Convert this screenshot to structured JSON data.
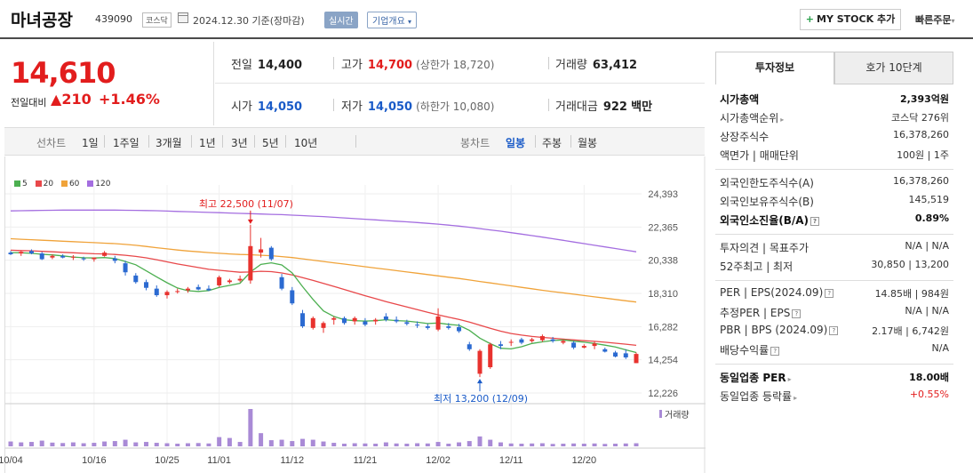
{
  "header": {
    "title": "마녀공장",
    "code": "439090",
    "market": "코스닥",
    "date": "2024.12.30",
    "date_note": "기준(장마감)",
    "realtime_label": "실시간",
    "company_label": "기업개요",
    "mystock_label": "MY STOCK 추가",
    "quick_label": "빠른주문"
  },
  "price": {
    "current": "14,610",
    "change_label": "전일대비",
    "change_value": "210",
    "change_pct": "+1.46%"
  },
  "stats": {
    "prev_close_label": "전일",
    "prev_close": "14,400",
    "high_label": "고가",
    "high": "14,700",
    "upper_limit_label": "(상한가",
    "upper_limit": "18,720)",
    "volume_label": "거래량",
    "volume": "63,412",
    "open_label": "시가",
    "open": "14,050",
    "low_label": "저가",
    "low": "14,050",
    "lower_limit_label": "(하한가",
    "lower_limit": "10,080)",
    "amount_label": "거래대금",
    "amount": "922",
    "amount_unit": "백만"
  },
  "period_bar": {
    "line_label": "선차트",
    "line_periods": [
      "1일",
      "1주일",
      "3개월",
      "1년",
      "3년",
      "5년",
      "10년"
    ],
    "candle_label": "봉차트",
    "candle_periods": [
      "일봉",
      "주봉",
      "월봉"
    ],
    "active_candle": "일봉"
  },
  "chart_data": {
    "type": "candlestick",
    "legend": [
      {
        "name": "5",
        "color": "#4caf50"
      },
      {
        "name": "20",
        "color": "#e8484a"
      },
      {
        "name": "60",
        "color": "#f0a33a"
      },
      {
        "name": "120",
        "color": "#a46ee0"
      }
    ],
    "y_ticks": [
      "24,393",
      "22,365",
      "20,338",
      "18,310",
      "16,282",
      "14,254",
      "12,226"
    ],
    "y_range": [
      12226,
      24393
    ],
    "x_ticks": [
      {
        "label": "10/04",
        "index": 0
      },
      {
        "label": "10/16",
        "index": 8
      },
      {
        "label": "10/25",
        "index": 15
      },
      {
        "label": "11/01",
        "index": 20
      },
      {
        "label": "11/12",
        "index": 27
      },
      {
        "label": "11/21",
        "index": 34
      },
      {
        "label": "12/02",
        "index": 41
      },
      {
        "label": "12/11",
        "index": 48
      },
      {
        "label": "12/20",
        "index": 55
      }
    ],
    "max_annotation": {
      "label": "최고 22,500 (11/07)",
      "index": 23,
      "value": 22500
    },
    "min_annotation": {
      "label": "최저 13,200 (12/09)",
      "index": 45,
      "value": 13200
    },
    "volume_label": "거래량",
    "candles": [
      [
        20800,
        20900,
        20650,
        20700
      ],
      [
        20750,
        20900,
        20600,
        20850
      ],
      [
        20900,
        21000,
        20700,
        20750
      ],
      [
        20750,
        20850,
        20350,
        20400
      ],
      [
        20500,
        20700,
        20400,
        20600
      ],
      [
        20600,
        20700,
        20450,
        20500
      ],
      [
        20500,
        20650,
        20350,
        20550
      ],
      [
        20450,
        20550,
        20300,
        20400
      ],
      [
        20400,
        20500,
        20250,
        20500
      ],
      [
        20600,
        20900,
        20550,
        20800
      ],
      [
        20450,
        20600,
        20150,
        20300
      ],
      [
        20150,
        20300,
        19400,
        19600
      ],
      [
        19400,
        19550,
        18900,
        19000
      ],
      [
        19000,
        19150,
        18500,
        18650
      ],
      [
        18600,
        18800,
        18100,
        18200
      ],
      [
        18200,
        18500,
        18000,
        18400
      ],
      [
        18400,
        18600,
        18300,
        18450
      ],
      [
        18500,
        18700,
        18350,
        18600
      ],
      [
        18700,
        18850,
        18500,
        18550
      ],
      [
        18600,
        18800,
        18450,
        18500
      ],
      [
        18800,
        19400,
        18700,
        19300
      ],
      [
        19000,
        19200,
        18900,
        19100
      ],
      [
        19100,
        19400,
        19000,
        19200
      ],
      [
        19100,
        22500,
        18900,
        21200
      ],
      [
        20800,
        21700,
        20500,
        21000
      ],
      [
        21100,
        21200,
        20300,
        20400
      ],
      [
        19300,
        19500,
        18500,
        18600
      ],
      [
        18500,
        18700,
        17600,
        17700
      ],
      [
        17100,
        17300,
        16200,
        16300
      ],
      [
        16200,
        16900,
        16100,
        16800
      ],
      [
        16200,
        16600,
        15900,
        16500
      ],
      [
        16700,
        16900,
        16400,
        16800
      ],
      [
        16800,
        16900,
        16400,
        16500
      ],
      [
        16600,
        16900,
        16400,
        16800
      ],
      [
        16600,
        16800,
        16300,
        16400
      ],
      [
        16600,
        16800,
        16400,
        16700
      ],
      [
        16900,
        17100,
        16600,
        16700
      ],
      [
        16700,
        16900,
        16500,
        16600
      ],
      [
        16550,
        16700,
        16350,
        16450
      ],
      [
        16400,
        16600,
        16200,
        16350
      ],
      [
        16300,
        16450,
        16100,
        16200
      ],
      [
        16100,
        17400,
        16000,
        16900
      ],
      [
        16300,
        16500,
        16100,
        16200
      ],
      [
        16250,
        16450,
        15900,
        16000
      ],
      [
        15200,
        15350,
        14800,
        14900
      ],
      [
        13400,
        14900,
        13200,
        14800
      ],
      [
        13800,
        15300,
        13700,
        15200
      ],
      [
        15200,
        15400,
        14900,
        15100
      ],
      [
        15300,
        15500,
        15100,
        15350
      ],
      [
        15500,
        15600,
        15200,
        15300
      ],
      [
        15400,
        15600,
        15300,
        15500
      ],
      [
        15450,
        15800,
        15350,
        15700
      ],
      [
        15500,
        15650,
        15300,
        15400
      ],
      [
        15300,
        15500,
        15200,
        15400
      ],
      [
        15300,
        15400,
        14900,
        15000
      ],
      [
        15000,
        15200,
        14950,
        15100
      ],
      [
        15100,
        15350,
        14900,
        15250
      ],
      [
        14900,
        15000,
        14700,
        14750
      ],
      [
        14700,
        14800,
        14400,
        14450
      ],
      [
        14650,
        14900,
        14300,
        14400
      ],
      [
        14050,
        14700,
        14050,
        14610
      ]
    ],
    "ma5": [
      20800,
      20790,
      20760,
      20700,
      20660,
      20600,
      20530,
      20490,
      20470,
      20500,
      20440,
      20260,
      20060,
      19690,
      19320,
      18960,
      18640,
      18470,
      18430,
      18480,
      18680,
      18800,
      18930,
      19620,
      20080,
      20180,
      20050,
      19560,
      18720,
      17940,
      17240,
      16900,
      16700,
      16640,
      16620,
      16640,
      16700,
      16650,
      16620,
      16550,
      16470,
      16500,
      16420,
      16360,
      16050,
      15580,
      15240,
      14960,
      14920,
      15050,
      15250,
      15350,
      15430,
      15470,
      15390,
      15330,
      15250,
      15150,
      15040,
      14860,
      14700
    ],
    "ma20": [
      20950,
      20930,
      20910,
      20880,
      20850,
      20820,
      20790,
      20760,
      20730,
      20720,
      20690,
      20640,
      20570,
      20480,
      20370,
      20240,
      20110,
      20000,
      19890,
      19780,
      19720,
      19660,
      19600,
      19620,
      19660,
      19640,
      19560,
      19440,
      19270,
      19100,
      18920,
      18740,
      18550,
      18360,
      18170,
      17990,
      17810,
      17640,
      17480,
      17320,
      17150,
      17000,
      16860,
      16720,
      16560,
      16370,
      16180,
      16000,
      15860,
      15760,
      15680,
      15620,
      15570,
      15520,
      15470,
      15420,
      15380,
      15330,
      15270,
      15210,
      15140
    ],
    "ma60": [
      21650,
      21620,
      21590,
      21560,
      21530,
      21500,
      21470,
      21440,
      21410,
      21380,
      21350,
      21300,
      21250,
      21180,
      21100,
      21030,
      20960,
      20900,
      20850,
      20800,
      20760,
      20720,
      20690,
      20670,
      20640,
      20610,
      20560,
      20500,
      20420,
      20340,
      20260,
      20180,
      20100,
      20020,
      19940,
      19860,
      19780,
      19700,
      19620,
      19540,
      19460,
      19380,
      19300,
      19220,
      19130,
      19040,
      18950,
      18860,
      18770,
      18680,
      18590,
      18500,
      18420,
      18340,
      18260,
      18180,
      18100,
      18020,
      17940,
      17860,
      17780
    ],
    "ma120": [
      23350,
      23360,
      23370,
      23380,
      23390,
      23400,
      23400,
      23400,
      23400,
      23400,
      23400,
      23390,
      23380,
      23370,
      23360,
      23340,
      23320,
      23300,
      23280,
      23260,
      23240,
      23220,
      23200,
      23180,
      23160,
      23140,
      23120,
      23090,
      23060,
      23030,
      23000,
      22960,
      22920,
      22880,
      22840,
      22800,
      22760,
      22720,
      22680,
      22640,
      22590,
      22540,
      22480,
      22420,
      22350,
      22270,
      22190,
      22110,
      22020,
      21930,
      21840,
      21750,
      21650,
      21550,
      21450,
      21350,
      21250,
      21150,
      21050,
      20950,
      20850
    ],
    "volumes": [
      22,
      18,
      20,
      26,
      17,
      15,
      18,
      14,
      16,
      22,
      24,
      30,
      18,
      20,
      16,
      14,
      12,
      14,
      15,
      13,
      42,
      38,
      20,
      170,
      60,
      28,
      30,
      24,
      34,
      30,
      22,
      16,
      12,
      14,
      13,
      12,
      18,
      13,
      12,
      14,
      13,
      20,
      12,
      18,
      24,
      45,
      30,
      18,
      13,
      12,
      13,
      14,
      11,
      12,
      13,
      12,
      13,
      11,
      12,
      13,
      14
    ]
  },
  "side": {
    "tab_active": "투자정보",
    "tab_other": "호가 10단계",
    "g1": [
      {
        "k": "시가총액",
        "v": "2,393억원",
        "bold": true
      },
      {
        "k": "시가총액순위",
        "v": "코스닥 276위",
        "arrow": true
      },
      {
        "k": "상장주식수",
        "v": "16,378,260"
      },
      {
        "k": "액면가 | 매매단위",
        "v": "100원 | 1주"
      }
    ],
    "g2": [
      {
        "k": "외국인한도주식수(A)",
        "v": "16,378,260"
      },
      {
        "k": "외국인보유주식수(B)",
        "v": "145,519"
      },
      {
        "k": "외국인소진율(B/A)",
        "v": "0.89%",
        "bold": true,
        "q": true
      }
    ],
    "g3": [
      {
        "k": "투자의견 | 목표주가",
        "v": "N/A | N/A"
      },
      {
        "k": "52주최고 | 최저",
        "v": "30,850 | 13,200"
      }
    ],
    "g4": [
      {
        "k": "PER | EPS(2024.09)",
        "v": "14.85배 | 984원",
        "q": true
      },
      {
        "k": "추정PER | EPS",
        "v": "N/A | N/A",
        "q": true
      },
      {
        "k": "PBR | BPS (2024.09)",
        "v": "2.17배 | 6,742원",
        "q": true
      },
      {
        "k": "배당수익률",
        "v": "N/A",
        "q": true
      }
    ],
    "g5": [
      {
        "k": "동일업종 PER",
        "v": "18.00배",
        "bold": true,
        "arrow": true
      },
      {
        "k": "동일업종 등락률",
        "v": "+0.55%",
        "arrow": true,
        "up": true
      }
    ]
  }
}
